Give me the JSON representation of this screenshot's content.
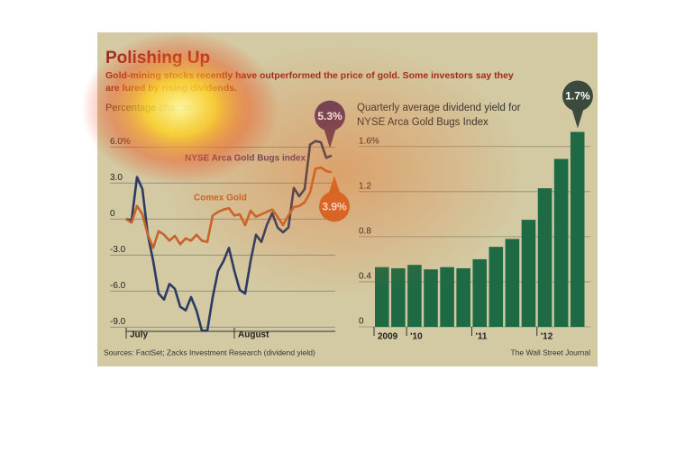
{
  "title": "Polishing Up",
  "subtitle": [
    "Gold-mining stocks recently have outperformed the price of gold. Some investors say they",
    "are lured by rising dividends."
  ],
  "source": "Sources: FactSet; Zacks Investment Research (dividend yield)",
  "credit": "The Wall Street Journal",
  "chart_data": [
    {
      "type": "line",
      "y_label": "Percentage change",
      "categories": [
        "July",
        null,
        null,
        null,
        null,
        null,
        null,
        null,
        null,
        null,
        null,
        null,
        null,
        null,
        null,
        null,
        null,
        null,
        null,
        null,
        "August",
        null,
        null,
        null,
        null,
        null,
        null,
        null,
        null,
        null,
        null,
        null,
        null,
        null,
        null,
        null,
        null,
        null,
        null
      ],
      "series": [
        {
          "name": "NYSE Arca Gold Bugs index",
          "color": "#2b3b63",
          "values": [
            0,
            -0.1,
            3.5,
            2.5,
            -1.3,
            -3.5,
            -6.2,
            -6.7,
            -5.4,
            -5.8,
            -7.3,
            -7.6,
            -6.5,
            -7.6,
            -9.3,
            -9.3,
            -6.5,
            -4.3,
            -3.5,
            -2.4,
            -4.3,
            -5.9,
            -6.2,
            -3.5,
            -1.3,
            -1.9,
            -0.5,
            0.5,
            -0.7,
            -1.1,
            -0.7,
            2.6,
            1.9,
            2.5,
            6.2,
            6.5,
            6.4,
            5.1,
            5.3
          ],
          "value_labels": [
            null,
            null,
            null,
            null,
            null,
            null,
            null,
            null,
            null,
            null,
            null,
            null,
            null,
            null,
            null,
            null,
            null,
            null,
            null,
            null,
            null,
            null,
            null,
            null,
            null,
            null,
            null,
            null,
            null,
            null,
            null,
            null,
            null,
            null,
            null,
            null,
            null,
            null,
            "5.3%"
          ]
        },
        {
          "name": "Comex Gold",
          "color": "#c8632a",
          "values": [
            0,
            -0.3,
            1.1,
            0.4,
            -1.3,
            -2.4,
            -1.0,
            -1.3,
            -1.8,
            -1.4,
            -2.1,
            -1.6,
            -1.8,
            -1.3,
            -1.8,
            -1.9,
            0.3,
            0.6,
            0.8,
            0.9,
            0.3,
            0.4,
            -0.5,
            0.7,
            0.2,
            0.4,
            0.6,
            0.8,
            0.2,
            -0.5,
            0.3,
            1.0,
            1.1,
            1.4,
            2.2,
            4.2,
            4.3,
            4.0,
            3.9
          ],
          "value_labels": [
            null,
            null,
            null,
            null,
            null,
            null,
            null,
            null,
            null,
            null,
            null,
            null,
            null,
            null,
            null,
            null,
            null,
            null,
            null,
            null,
            null,
            null,
            null,
            null,
            null,
            null,
            null,
            null,
            null,
            null,
            null,
            null,
            null,
            null,
            null,
            null,
            null,
            null,
            "3.9%"
          ]
        }
      ],
      "ylim": [
        -9.5,
        7.0
      ],
      "yticks": [
        {
          "value": 6,
          "label": "6.0%"
        },
        {
          "value": 3,
          "label": "3.0"
        },
        0,
        {
          "value": -3,
          "label": "-3.0"
        },
        {
          "value": -6,
          "label": "-6.0"
        },
        {
          "value": -9,
          "label": "-9.0"
        }
      ],
      "grid": true
    },
    {
      "type": "bar",
      "title": [
        "Quarterly average dividend yield for",
        "NYSE Arca Gold Bugs Index"
      ],
      "categories": [
        "2009",
        null,
        "'10",
        null,
        null,
        null,
        "'11",
        null,
        null,
        null,
        "'12",
        null,
        null
      ],
      "values": [
        0.53,
        0.52,
        0.55,
        0.51,
        0.53,
        0.52,
        0.6,
        0.71,
        0.78,
        0.95,
        1.23,
        1.49,
        1.73
      ],
      "value_labels": [
        null,
        null,
        null,
        null,
        null,
        null,
        null,
        null,
        null,
        null,
        null,
        null,
        "1.7%"
      ],
      "color": "#1e6a45",
      "ylim": [
        0,
        1.75
      ],
      "yticks": [
        {
          "value": 1.6,
          "label": "1.6%"
        },
        1.2,
        0.8,
        0.4,
        0
      ],
      "grid": true
    }
  ]
}
